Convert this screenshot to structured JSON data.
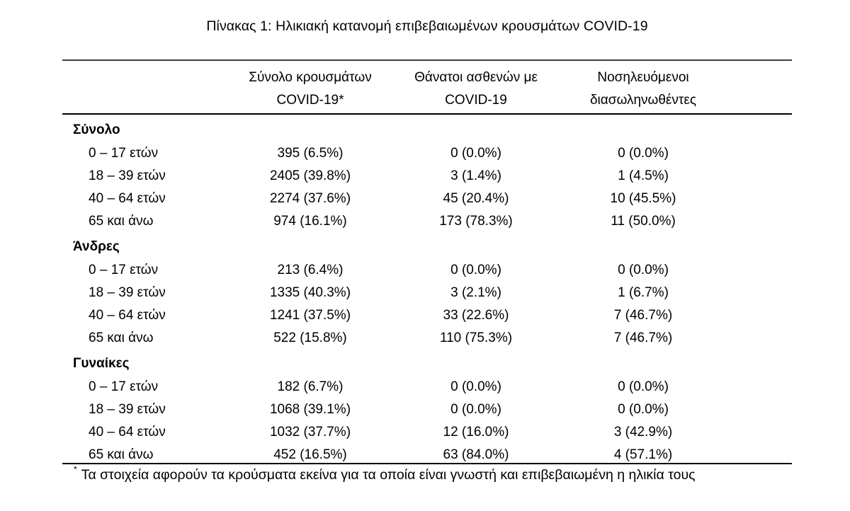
{
  "caption": "Πίνακας 1: Ηλικιακή κατανομή επιβεβαιωμένων κρουσμάτων COVID-19",
  "headers": [
    [
      "Σύνολο κρουσμάτων",
      "COVID-19*"
    ],
    [
      "Θάνατοι ασθενών με",
      "COVID-19"
    ],
    [
      "Νοσηλευόμενοι",
      "διασωληνωθέντες"
    ]
  ],
  "groups": [
    {
      "title": "Σύνολο",
      "rows": [
        {
          "label": "0 – 17 ετών",
          "cases": "395 (6.5%)",
          "deaths": "0 (0.0%)",
          "intubated": "0 (0.0%)"
        },
        {
          "label": "18 – 39 ετών",
          "cases": "2405 (39.8%)",
          "deaths": "3 (1.4%)",
          "intubated": "1 (4.5%)"
        },
        {
          "label": "40 – 64 ετών",
          "cases": "2274 (37.6%)",
          "deaths": "45 (20.4%)",
          "intubated": "10 (45.5%)"
        },
        {
          "label": "65 και άνω",
          "cases": "974 (16.1%)",
          "deaths": "173 (78.3%)",
          "intubated": "11 (50.0%)"
        }
      ]
    },
    {
      "title": "Άνδρες",
      "rows": [
        {
          "label": "0 – 17 ετών",
          "cases": "213 (6.4%)",
          "deaths": "0 (0.0%)",
          "intubated": "0 (0.0%)"
        },
        {
          "label": "18 – 39 ετών",
          "cases": "1335 (40.3%)",
          "deaths": "3 (2.1%)",
          "intubated": "1 (6.7%)"
        },
        {
          "label": "40 – 64 ετών",
          "cases": "1241 (37.5%)",
          "deaths": "33 (22.6%)",
          "intubated": "7 (46.7%)"
        },
        {
          "label": "65 και άνω",
          "cases": "522 (15.8%)",
          "deaths": "110 (75.3%)",
          "intubated": "7 (46.7%)"
        }
      ]
    },
    {
      "title": "Γυναίκες",
      "rows": [
        {
          "label": "0 – 17 ετών",
          "cases": "182 (6.7%)",
          "deaths": "0 (0.0%)",
          "intubated": "0 (0.0%)"
        },
        {
          "label": "18 – 39 ετών",
          "cases": "1068 (39.1%)",
          "deaths": "0 (0.0%)",
          "intubated": "0 (0.0%)"
        },
        {
          "label": "40 – 64 ετών",
          "cases": "1032 (37.7%)",
          "deaths": "12 (16.0%)",
          "intubated": "3 (42.9%)"
        },
        {
          "label": "65 και άνω",
          "cases": "452 (16.5%)",
          "deaths": "63 (84.0%)",
          "intubated": "4 (57.1%)"
        }
      ]
    }
  ],
  "footnote": {
    "marker": "*",
    "text": "Τα στοιχεία αφορούν τα κρούσματα εκείνα για τα οποία είναι γνωστή και επιβεβαιωμένη η ηλικία τους"
  }
}
